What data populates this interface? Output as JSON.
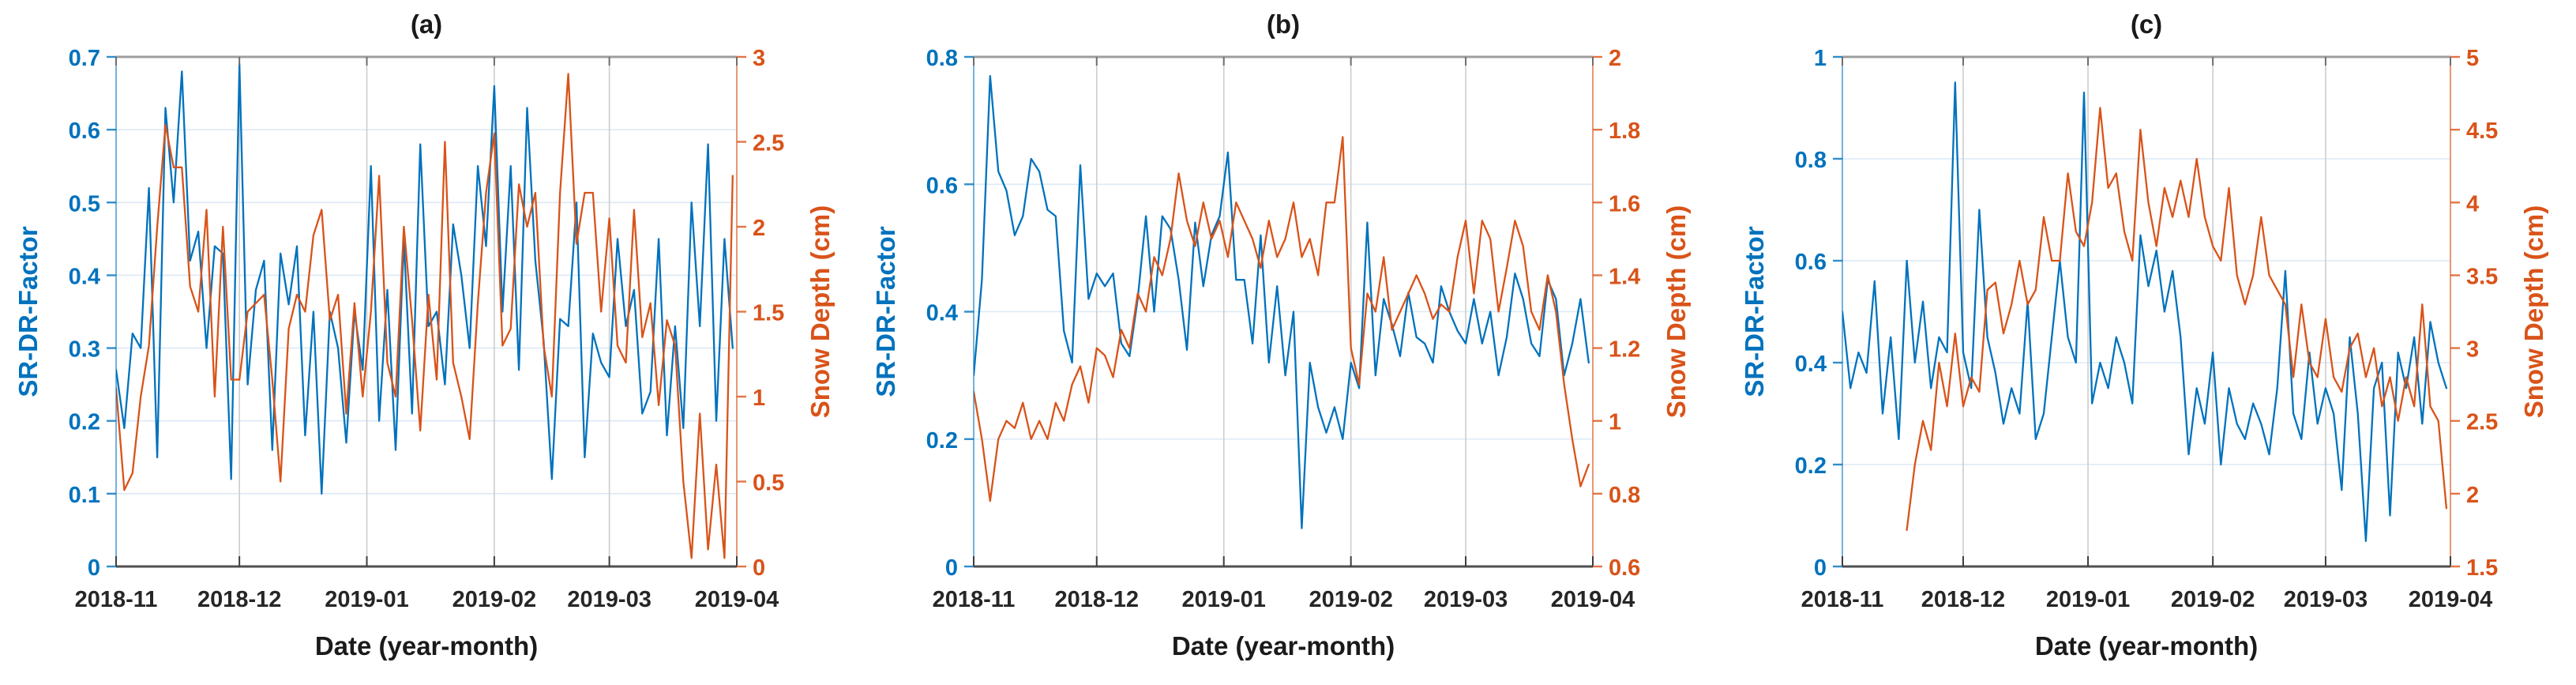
{
  "figure": {
    "background": "#ffffff",
    "xlabel": "Date (year-month)",
    "left_axis_label": "SR-DR-Factor",
    "right_axis_label": "Snow Depth (cm)",
    "colors": {
      "blue": "#0072BD",
      "orange": "#D95319",
      "grid_horizontal": "#dce9f5",
      "grid_vertical": "#cdcdcd",
      "frame_top": "#9e9e9e",
      "frame_bottom": "#4f4f4f"
    }
  },
  "chart_data": [
    {
      "id": "a",
      "type": "line",
      "title": "(a)",
      "xlabel": "Date (year-month)",
      "x_tick_labels": [
        "2018-11",
        "2018-12",
        "2019-01",
        "2019-02",
        "2019-03",
        "2019-04"
      ],
      "x_tick_days": [
        0,
        30,
        61,
        92,
        120,
        151
      ],
      "x_range_days": [
        0,
        151
      ],
      "grid": true,
      "left_axis": {
        "label": "SR-DR-Factor",
        "color": "#0072BD",
        "min": 0,
        "max": 0.7,
        "ticks": [
          0,
          0.1,
          0.2,
          0.3,
          0.4,
          0.5,
          0.6,
          0.7
        ],
        "tick_labels": [
          "0",
          "0.1",
          "0.2",
          "0.3",
          "0.4",
          "0.5",
          "0.6",
          "0.7"
        ]
      },
      "right_axis": {
        "label": "Snow Depth (cm)",
        "color": "#D95319",
        "min": 0,
        "max": 3,
        "ticks": [
          0,
          0.5,
          1,
          1.5,
          2,
          2.5,
          3
        ],
        "tick_labels": [
          "0",
          "0.5",
          "1",
          "1.5",
          "2",
          "2.5",
          "3"
        ]
      },
      "series": [
        {
          "name": "SR-DR-Factor",
          "axis": "left",
          "color": "#0072BD",
          "x_start": 0,
          "x_step": 2,
          "values": [
            0.27,
            0.19,
            0.32,
            0.3,
            0.52,
            0.15,
            0.63,
            0.5,
            0.68,
            0.42,
            0.46,
            0.3,
            0.44,
            0.43,
            0.12,
            0.69,
            0.25,
            0.38,
            0.42,
            0.16,
            0.43,
            0.36,
            0.44,
            0.18,
            0.35,
            0.1,
            0.35,
            0.3,
            0.17,
            0.35,
            0.27,
            0.55,
            0.2,
            0.38,
            0.16,
            0.45,
            0.21,
            0.58,
            0.33,
            0.35,
            0.25,
            0.47,
            0.4,
            0.3,
            0.55,
            0.44,
            0.66,
            0.35,
            0.55,
            0.27,
            0.63,
            0.42,
            0.31,
            0.12,
            0.34,
            0.33,
            0.5,
            0.15,
            0.32,
            0.28,
            0.26,
            0.45,
            0.33,
            0.38,
            0.21,
            0.24,
            0.45,
            0.18,
            0.33,
            0.19,
            0.5,
            0.33,
            0.58,
            0.2,
            0.45,
            0.3
          ]
        },
        {
          "name": "Snow Depth",
          "axis": "right",
          "color": "#D95319",
          "x_start": 0,
          "x_step": 2,
          "values": [
            1.05,
            0.45,
            0.55,
            1.0,
            1.3,
            2.0,
            2.6,
            2.35,
            2.35,
            1.65,
            1.5,
            2.1,
            1.0,
            2.0,
            1.1,
            1.1,
            1.5,
            1.55,
            1.6,
            1.1,
            0.5,
            1.4,
            1.6,
            1.5,
            1.95,
            2.1,
            1.45,
            1.6,
            0.9,
            1.55,
            1.0,
            1.5,
            2.3,
            1.2,
            1.0,
            2.0,
            1.45,
            0.8,
            1.6,
            1.1,
            2.5,
            1.2,
            1.0,
            0.75,
            1.55,
            2.2,
            2.55,
            1.3,
            1.4,
            2.25,
            2.0,
            2.2,
            1.3,
            1.0,
            2.2,
            2.9,
            1.9,
            2.2,
            2.2,
            1.5,
            2.05,
            1.3,
            1.2,
            2.1,
            1.35,
            1.55,
            0.95,
            1.45,
            1.3,
            0.5,
            0.05,
            0.9,
            0.1,
            0.6,
            0.05,
            2.3
          ]
        }
      ]
    },
    {
      "id": "b",
      "type": "line",
      "title": "(b)",
      "xlabel": "Date (year-month)",
      "x_tick_labels": [
        "2018-11",
        "2018-12",
        "2019-01",
        "2019-02",
        "2019-03",
        "2019-04"
      ],
      "x_tick_days": [
        0,
        30,
        61,
        92,
        120,
        151
      ],
      "x_range_days": [
        0,
        151
      ],
      "grid": true,
      "left_axis": {
        "label": "SR-DR-Factor",
        "color": "#0072BD",
        "min": 0,
        "max": 0.8,
        "ticks": [
          0,
          0.2,
          0.4,
          0.6,
          0.8
        ],
        "tick_labels": [
          "0",
          "0.2",
          "0.4",
          "0.6",
          "0.8"
        ]
      },
      "right_axis": {
        "label": "Snow Depth (cm)",
        "color": "#D95319",
        "min": 0.6,
        "max": 2,
        "ticks": [
          0.6,
          0.8,
          1,
          1.2,
          1.4,
          1.6,
          1.8,
          2
        ],
        "tick_labels": [
          "0.6",
          "0.8",
          "1",
          "1.2",
          "1.4",
          "1.6",
          "1.8",
          "2"
        ]
      },
      "series": [
        {
          "name": "SR-DR-Factor",
          "axis": "left",
          "color": "#0072BD",
          "x_start": 0,
          "x_step": 2,
          "values": [
            0.3,
            0.45,
            0.77,
            0.62,
            0.59,
            0.52,
            0.55,
            0.64,
            0.62,
            0.56,
            0.55,
            0.37,
            0.32,
            0.63,
            0.42,
            0.46,
            0.44,
            0.46,
            0.35,
            0.33,
            0.42,
            0.55,
            0.4,
            0.55,
            0.53,
            0.45,
            0.34,
            0.54,
            0.44,
            0.52,
            0.55,
            0.65,
            0.45,
            0.45,
            0.35,
            0.52,
            0.32,
            0.44,
            0.3,
            0.4,
            0.06,
            0.32,
            0.25,
            0.21,
            0.25,
            0.2,
            0.32,
            0.28,
            0.54,
            0.3,
            0.42,
            0.38,
            0.33,
            0.43,
            0.36,
            0.35,
            0.32,
            0.44,
            0.4,
            0.37,
            0.35,
            0.42,
            0.35,
            0.4,
            0.3,
            0.36,
            0.46,
            0.42,
            0.35,
            0.33,
            0.45,
            0.42,
            0.3,
            0.35,
            0.42,
            0.32
          ]
        },
        {
          "name": "Snow Depth",
          "axis": "right",
          "color": "#D95319",
          "x_start": 0,
          "x_step": 2,
          "values": [
            1.08,
            0.95,
            0.78,
            0.95,
            1.0,
            0.98,
            1.05,
            0.95,
            1.0,
            0.95,
            1.05,
            1.0,
            1.1,
            1.15,
            1.05,
            1.2,
            1.18,
            1.12,
            1.25,
            1.2,
            1.35,
            1.3,
            1.45,
            1.4,
            1.5,
            1.68,
            1.55,
            1.48,
            1.6,
            1.5,
            1.55,
            1.45,
            1.6,
            1.55,
            1.5,
            1.42,
            1.55,
            1.45,
            1.5,
            1.6,
            1.45,
            1.5,
            1.4,
            1.6,
            1.6,
            1.78,
            1.2,
            1.1,
            1.35,
            1.3,
            1.45,
            1.25,
            1.3,
            1.35,
            1.4,
            1.35,
            1.28,
            1.32,
            1.3,
            1.45,
            1.55,
            1.35,
            1.55,
            1.5,
            1.3,
            1.42,
            1.55,
            1.48,
            1.3,
            1.25,
            1.4,
            1.3,
            1.1,
            0.95,
            0.82,
            0.88
          ]
        }
      ]
    },
    {
      "id": "c",
      "type": "line",
      "title": "(c)",
      "xlabel": "Date (year-month)",
      "x_tick_labels": [
        "2018-11",
        "2018-12",
        "2019-01",
        "2019-02",
        "2019-03",
        "2019-04"
      ],
      "x_tick_days": [
        0,
        30,
        61,
        92,
        120,
        151
      ],
      "x_range_days": [
        0,
        151
      ],
      "grid": true,
      "left_axis": {
        "label": "SR-DR-Factor",
        "color": "#0072BD",
        "min": 0,
        "max": 1,
        "ticks": [
          0,
          0.2,
          0.4,
          0.6,
          0.8,
          1
        ],
        "tick_labels": [
          "0",
          "0.2",
          "0.4",
          "0.6",
          "0.8",
          "1"
        ]
      },
      "right_axis": {
        "label": "Snow Depth (cm)",
        "color": "#D95319",
        "min": 1.5,
        "max": 5,
        "ticks": [
          1.5,
          2,
          2.5,
          3,
          3.5,
          4,
          4.5,
          5
        ],
        "tick_labels": [
          "1.5",
          "2",
          "2.5",
          "3",
          "3.5",
          "4",
          "4.5",
          "5"
        ]
      },
      "series": [
        {
          "name": "SR-DR-Factor",
          "axis": "left",
          "color": "#0072BD",
          "x_start": 0,
          "x_step": 2,
          "values": [
            0.5,
            0.35,
            0.42,
            0.38,
            0.56,
            0.3,
            0.45,
            0.25,
            0.6,
            0.4,
            0.52,
            0.35,
            0.45,
            0.42,
            0.95,
            0.42,
            0.35,
            0.7,
            0.45,
            0.38,
            0.28,
            0.35,
            0.3,
            0.52,
            0.25,
            0.3,
            0.45,
            0.6,
            0.45,
            0.4,
            0.93,
            0.32,
            0.4,
            0.35,
            0.45,
            0.4,
            0.32,
            0.65,
            0.55,
            0.62,
            0.5,
            0.58,
            0.45,
            0.22,
            0.35,
            0.28,
            0.42,
            0.2,
            0.35,
            0.28,
            0.25,
            0.32,
            0.28,
            0.22,
            0.35,
            0.58,
            0.3,
            0.25,
            0.42,
            0.28,
            0.35,
            0.3,
            0.15,
            0.45,
            0.3,
            0.05,
            0.35,
            0.4,
            0.1,
            0.42,
            0.35,
            0.45,
            0.28,
            0.48,
            0.4,
            0.35
          ]
        },
        {
          "name": "Snow Depth",
          "axis": "right",
          "color": "#D95319",
          "x_start": 16,
          "x_step": 2,
          "values": [
            1.75,
            2.2,
            2.5,
            2.3,
            2.9,
            2.6,
            3.1,
            2.6,
            2.8,
            2.7,
            3.4,
            3.45,
            3.1,
            3.3,
            3.6,
            3.3,
            3.4,
            3.9,
            3.6,
            3.6,
            4.2,
            3.8,
            3.7,
            4.0,
            4.65,
            4.1,
            4.2,
            3.8,
            3.6,
            4.5,
            4.0,
            3.7,
            4.1,
            3.9,
            4.15,
            3.9,
            4.3,
            3.9,
            3.7,
            3.6,
            4.1,
            3.5,
            3.3,
            3.5,
            3.9,
            3.5,
            3.4,
            3.3,
            2.8,
            3.3,
            2.9,
            2.8,
            3.2,
            2.8,
            2.7,
            3.0,
            3.1,
            2.8,
            3.0,
            2.6,
            2.8,
            2.5,
            2.8,
            2.6,
            3.3,
            2.6,
            2.5,
            1.9
          ]
        }
      ]
    }
  ]
}
